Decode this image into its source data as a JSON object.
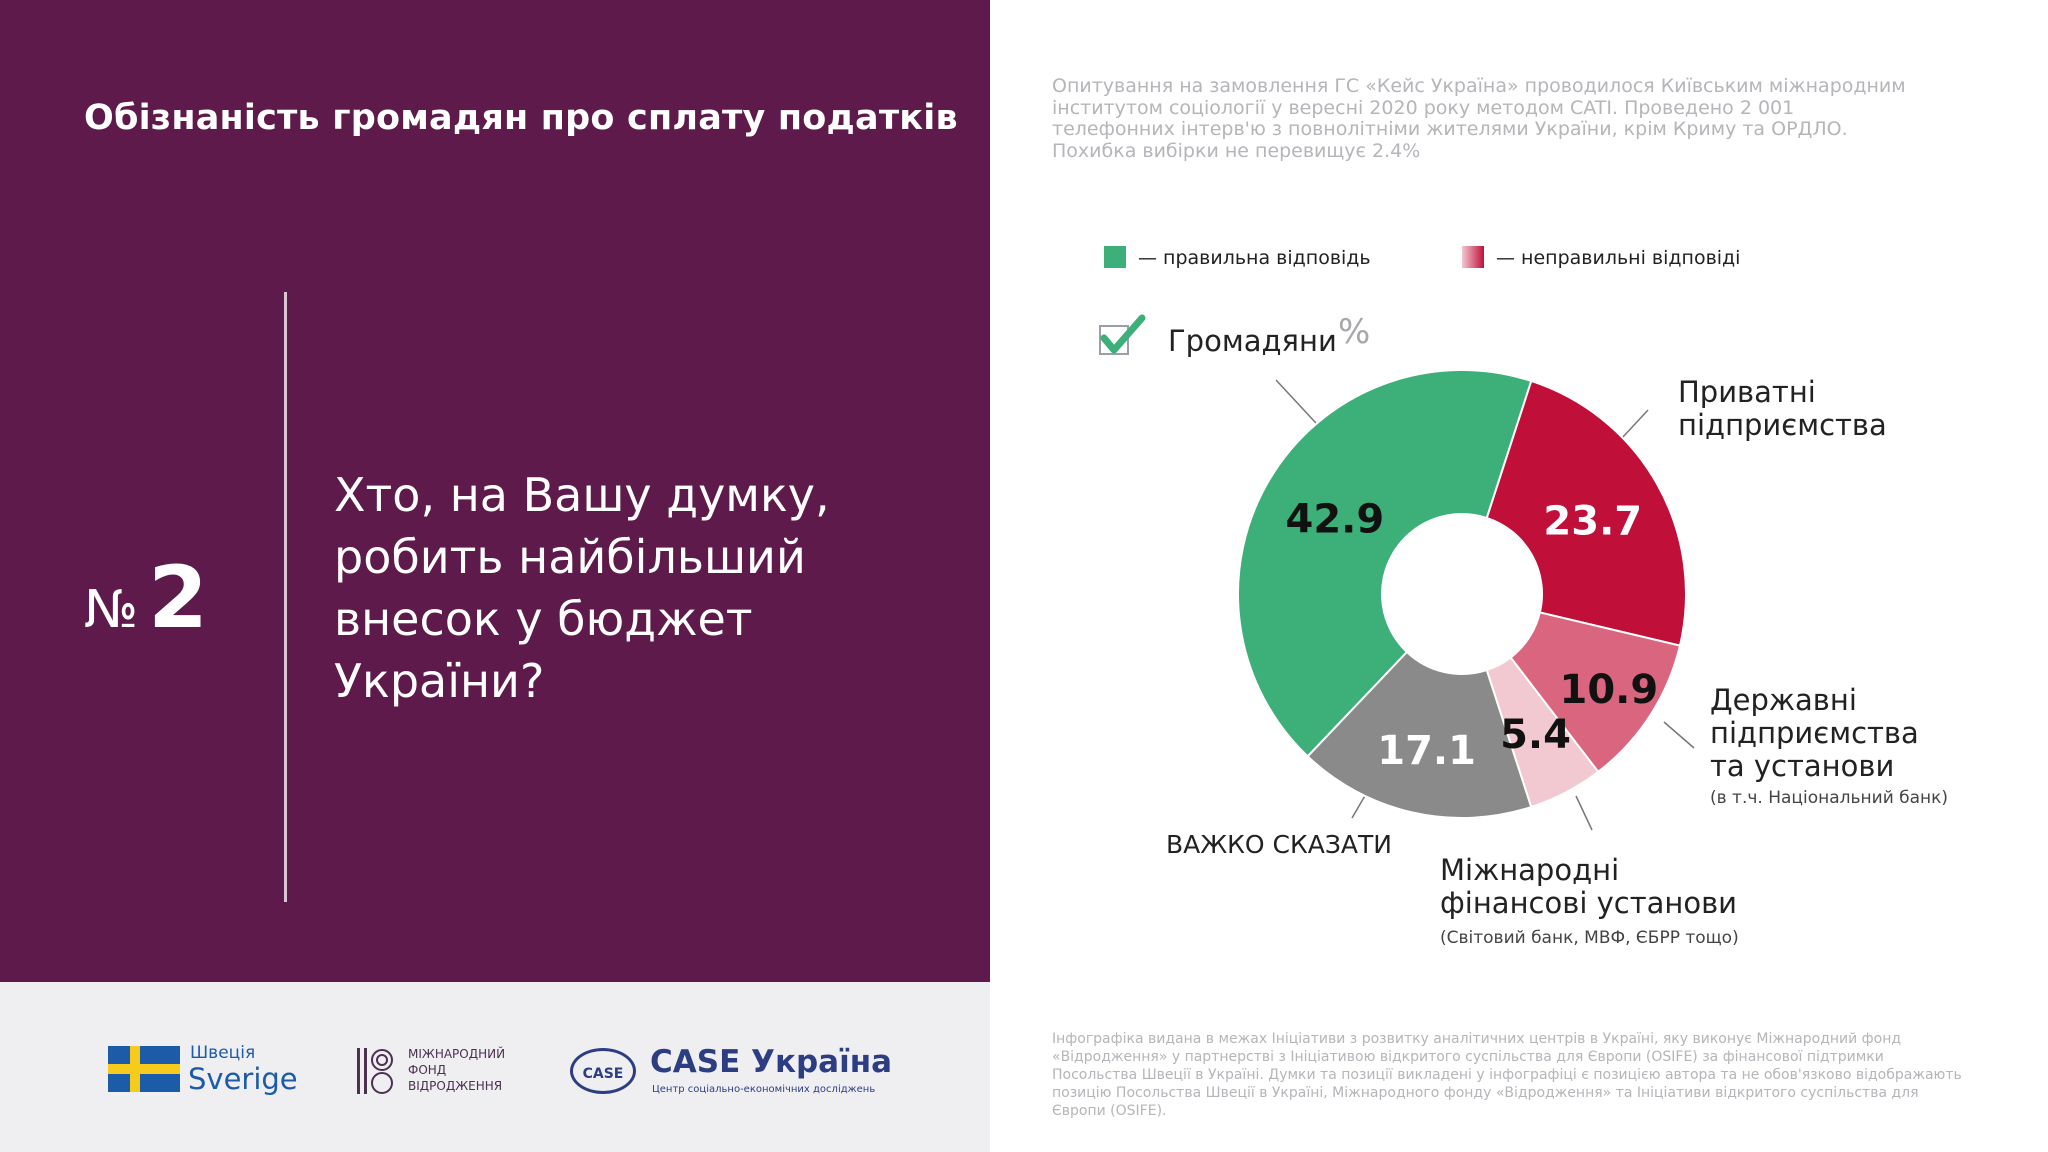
{
  "header": {
    "title": "Обізнаність громадян про сплату податків"
  },
  "question": {
    "number_sign": "№",
    "number": "2",
    "text": "Хто, на Вашу думку, робить найбільший внесок у бюджет України?"
  },
  "source_note": "Опитування на замовлення ГС «Кейс Україна» проводилося Київським міжнародним інститутом соціології у вересні 2020 року методом CATI. Проведено 2 001 телефонних інтерв'ю з повнолітніми жителями України, крім Криму та ОРДЛО. Похибка вибірки не перевищує 2.4%",
  "legend": {
    "correct": "— правильна відповідь",
    "incorrect": "— неправильні відповіді",
    "correct_color": "#3daf78",
    "incorrect_color": "#c0103a"
  },
  "subject": {
    "label": "Громадяни",
    "unit": "%"
  },
  "chart_data": {
    "type": "pie",
    "style": "donut",
    "unit": "%",
    "slices": [
      {
        "label": "Громадяни",
        "value": 42.9,
        "value_label": "42.9",
        "color": "#3daf78",
        "correct": true
      },
      {
        "label": "Приватні підприємства",
        "value": 23.7,
        "value_label": "23.7",
        "color": "#c0103a",
        "correct": false
      },
      {
        "label": "Державні підприємства та установи",
        "sublabel": "(в т.ч. Національний банк)",
        "value": 10.9,
        "value_label": "10.9",
        "color": "#d9657f",
        "correct": false
      },
      {
        "label": "Міжнародні фінансові установи",
        "sublabel": "(Світовий банк, МВФ, ЄБРР тощо)",
        "value": 5.4,
        "value_label": "5.4",
        "color": "#f2c8d1",
        "correct": false
      },
      {
        "label": "ВАЖКО СКАЗАТИ",
        "value": 17.1,
        "value_label": "17.1",
        "color": "#8a8a8a",
        "correct": null
      }
    ]
  },
  "category_labels": {
    "private_line1": "Приватні",
    "private_line2": "підприємства",
    "state_line1": "Державні",
    "state_line2": "підприємства",
    "state_line3": "та установи",
    "state_sub": "(в т.ч. Національний банк)",
    "intl_line1": "Міжнародні",
    "intl_line2": "фінансові установи",
    "intl_sub": "(Світовий банк, МВФ, ЄБРР тощо)",
    "hard_to_say": "ВАЖКО СКАЗАТИ"
  },
  "footer": {
    "sweden_top": "Швеція",
    "sweden_bottom": "Sverige",
    "irf_line1": "МІЖНАРОДНИЙ",
    "irf_line2": "ФОНД",
    "irf_line3": "ВІДРОДЖЕННЯ",
    "case_oval": "CASE",
    "case_name": "CASE Україна",
    "case_sub": "Центр соціально-економічних досліджень",
    "funding_note": "Інфографіка видана в межах Ініціативи з розвитку аналітичних центрів в Україні, яку виконує Міжнародний фонд «Відродження» у партнерстві з Ініціативою відкритого суспільства для Європи (OSIFE) за фінансової підтримки Посольства Швеції в Україні. Думки та позиції викладені у інфографіці є позицією автора та не обов'язково відображають позицію Посольства Швеції в Україні, Міжнародного фонду «Відродження» та Ініціативи відкритого суспільства для Європи (OSIFE)."
  }
}
